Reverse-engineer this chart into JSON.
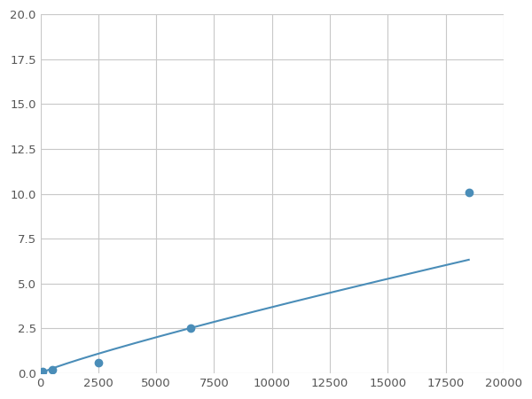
{
  "x_points": [
    100,
    500,
    2500,
    6500,
    18500
  ],
  "y_points": [
    0.1,
    0.2,
    0.6,
    2.5,
    10.1
  ],
  "line_color": "#4a8db8",
  "marker_color": "#4a8db8",
  "marker_size": 6,
  "xlim": [
    0,
    20000
  ],
  "ylim": [
    0,
    20.0
  ],
  "xticks": [
    0,
    2500,
    5000,
    7500,
    10000,
    12500,
    15000,
    17500,
    20000
  ],
  "yticks": [
    0.0,
    2.5,
    5.0,
    7.5,
    10.0,
    12.5,
    15.0,
    17.5,
    20.0
  ],
  "grid_color": "#c8c8c8",
  "background_color": "#ffffff",
  "tick_label_color": "#555555",
  "tick_fontsize": 9.5,
  "figsize": [
    6.0,
    4.5
  ],
  "dpi": 100
}
